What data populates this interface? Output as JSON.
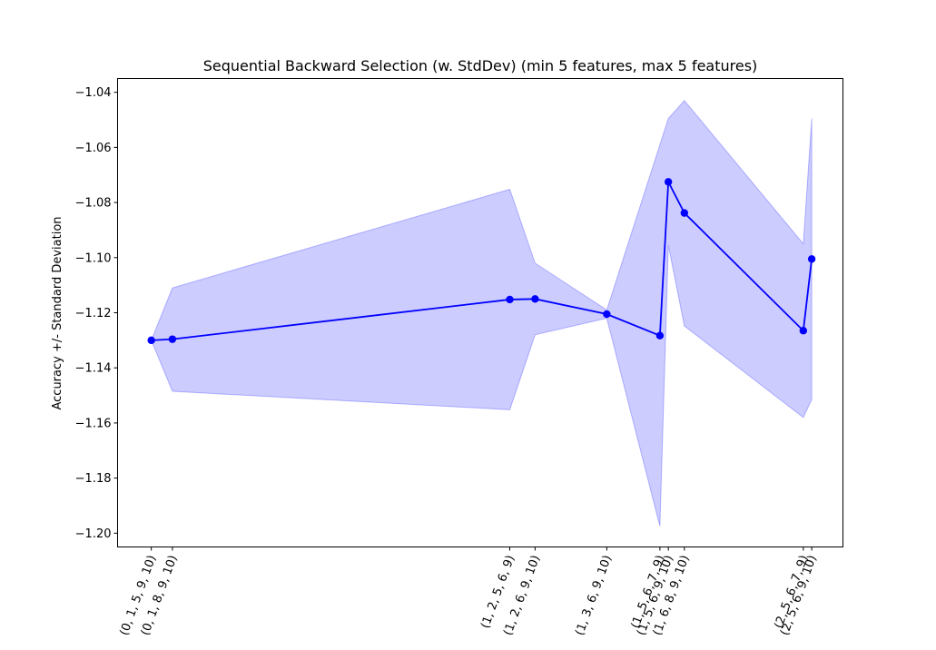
{
  "chart_data": {
    "type": "line",
    "title": "Sequential Backward Selection (w. StdDev) (min 5 features, max 5 features)",
    "ylabel": "Accuracy +/- Standard Deviation",
    "xlabel": "",
    "ylim": [
      -1.205,
      -1.035
    ],
    "yticks": [
      -1.04,
      -1.06,
      -1.08,
      -1.1,
      -1.12,
      -1.14,
      -1.16,
      -1.18,
      -1.2
    ],
    "ytick_labels": [
      "−1.04",
      "−1.06",
      "−1.08",
      "−1.10",
      "−1.12",
      "−1.14",
      "−1.16",
      "−1.18",
      "−1.20"
    ],
    "grid": false,
    "legend": "none",
    "colors": {
      "line": "#0000ff",
      "band": "#0000ff",
      "band_opacity": 0.2
    },
    "points": [
      {
        "x": 0.0,
        "label": "(0, 1, 5, 9, 10)",
        "y": -1.13,
        "upper": -1.13,
        "lower": -1.13
      },
      {
        "x": 0.25,
        "label": "(0, 1, 8, 9, 10)",
        "y": -1.1296,
        "upper": -1.111,
        "lower": -1.1485
      },
      {
        "x": 4.25,
        "label": "(1, 2, 5, 6, 9)",
        "y": -1.1152,
        "upper": -1.0752,
        "lower": -1.1552
      },
      {
        "x": 4.55,
        "label": "(1, 2, 6, 9, 10)",
        "y": -1.115,
        "upper": -1.102,
        "lower": -1.128
      },
      {
        "x": 5.4,
        "label": "(1, 3, 6, 9, 10)",
        "y": -1.1205,
        "upper": -1.119,
        "lower": -1.122
      },
      {
        "x": 6.03,
        "label": "(1, 5, 6, 7, 9)",
        "y": -1.1283,
        "upper": -1.059,
        "lower": -1.1975
      },
      {
        "x": 6.13,
        "label": "(1, 5, 6, 9, 10)",
        "y": -1.0725,
        "upper": -1.0495,
        "lower": -1.0955
      },
      {
        "x": 6.32,
        "label": "(1, 6, 8, 9, 10)",
        "y": -1.0838,
        "upper": -1.043,
        "lower": -1.1248
      },
      {
        "x": 7.73,
        "label": "(2, 5, 6, 7, 9)",
        "y": -1.1265,
        "upper": -1.095,
        "lower": -1.158
      },
      {
        "x": 7.83,
        "label": "(2, 5, 6, 9, 10)",
        "y": -1.1005,
        "upper": -1.0495,
        "lower": -1.1515
      }
    ],
    "xlim": [
      -0.4,
      8.2
    ]
  }
}
